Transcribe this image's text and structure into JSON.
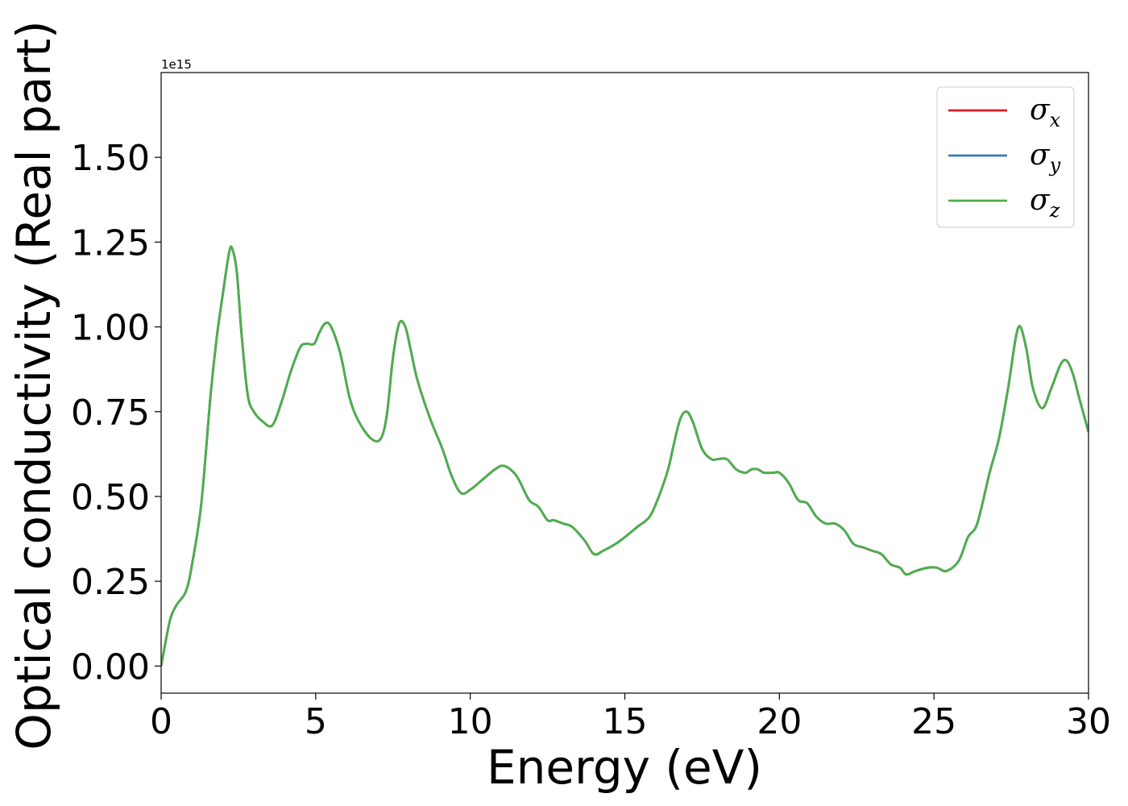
{
  "chart_data": {
    "type": "line",
    "title": "",
    "xlabel": "Energy (eV)",
    "ylabel": "Optical conductivity (Real part)",
    "y_offset_label": "1e15",
    "xlim": [
      0,
      30
    ],
    "ylim": [
      -0.08,
      1.75
    ],
    "x_ticks": [
      0,
      5,
      10,
      15,
      20,
      25,
      30
    ],
    "x_tick_labels": [
      "0",
      "5",
      "10",
      "15",
      "20",
      "25",
      "30"
    ],
    "y_ticks": [
      0.0,
      0.25,
      0.5,
      0.75,
      1.0,
      1.25,
      1.5
    ],
    "y_tick_labels": [
      "0.00",
      "0.25",
      "0.50",
      "0.75",
      "1.00",
      "1.25",
      "1.50"
    ],
    "grid": false,
    "legend_position": "top-right",
    "x": [
      0,
      0.1,
      0.3,
      0.5,
      0.8,
      1.0,
      1.3,
      1.6,
      1.8,
      2.0,
      2.2,
      2.3,
      2.45,
      2.6,
      2.8,
      3.0,
      3.3,
      3.6,
      3.9,
      4.2,
      4.5,
      4.7,
      4.95,
      5.1,
      5.3,
      5.5,
      5.8,
      6.1,
      6.4,
      6.8,
      7.1,
      7.3,
      7.5,
      7.7,
      7.9,
      8.1,
      8.3,
      8.7,
      9.1,
      9.4,
      9.7,
      10.0,
      10.4,
      10.8,
      11.1,
      11.5,
      11.9,
      12.2,
      12.5,
      12.7,
      13.0,
      13.3,
      13.7,
      14.0,
      14.3,
      14.7,
      15.0,
      15.4,
      15.8,
      16.1,
      16.4,
      16.6,
      16.8,
      17.0,
      17.2,
      17.5,
      17.8,
      18.0,
      18.3,
      18.6,
      18.9,
      19.1,
      19.3,
      19.5,
      19.8,
      20.0,
      20.3,
      20.6,
      20.9,
      21.2,
      21.5,
      21.8,
      22.1,
      22.4,
      22.7,
      23.0,
      23.3,
      23.6,
      23.9,
      24.1,
      24.4,
      24.8,
      25.1,
      25.4,
      25.8,
      26.1,
      26.4,
      26.8,
      27.1,
      27.4,
      27.65,
      27.8,
      28.0,
      28.2,
      28.5,
      28.8,
      29.1,
      29.3,
      29.5,
      29.7,
      30.0
    ],
    "series": [
      {
        "name": "σ_x",
        "label": "σ",
        "subscript": "x",
        "color": "#e41a1c",
        "values": [
          0.0,
          0.05,
          0.14,
          0.18,
          0.22,
          0.3,
          0.48,
          0.8,
          0.97,
          1.1,
          1.22,
          1.23,
          1.16,
          0.98,
          0.8,
          0.75,
          0.72,
          0.71,
          0.78,
          0.87,
          0.94,
          0.95,
          0.95,
          0.98,
          1.01,
          1.0,
          0.92,
          0.79,
          0.72,
          0.67,
          0.67,
          0.74,
          0.91,
          1.01,
          1.0,
          0.92,
          0.84,
          0.73,
          0.64,
          0.56,
          0.51,
          0.52,
          0.55,
          0.58,
          0.59,
          0.56,
          0.49,
          0.47,
          0.43,
          0.43,
          0.42,
          0.41,
          0.37,
          0.33,
          0.34,
          0.36,
          0.38,
          0.41,
          0.44,
          0.5,
          0.58,
          0.66,
          0.73,
          0.75,
          0.72,
          0.64,
          0.61,
          0.61,
          0.61,
          0.58,
          0.57,
          0.58,
          0.58,
          0.57,
          0.57,
          0.57,
          0.54,
          0.49,
          0.48,
          0.44,
          0.42,
          0.42,
          0.4,
          0.36,
          0.35,
          0.34,
          0.33,
          0.3,
          0.29,
          0.27,
          0.28,
          0.29,
          0.29,
          0.28,
          0.31,
          0.38,
          0.42,
          0.57,
          0.67,
          0.82,
          0.97,
          1.0,
          0.93,
          0.82,
          0.76,
          0.82,
          0.89,
          0.9,
          0.86,
          0.79,
          0.69
        ]
      },
      {
        "name": "σ_y",
        "label": "σ",
        "subscript": "y",
        "color": "#377eb8",
        "values": [
          0.0,
          0.05,
          0.14,
          0.18,
          0.22,
          0.3,
          0.48,
          0.8,
          0.97,
          1.1,
          1.22,
          1.23,
          1.16,
          0.98,
          0.8,
          0.75,
          0.72,
          0.71,
          0.78,
          0.87,
          0.94,
          0.95,
          0.95,
          0.98,
          1.01,
          1.0,
          0.92,
          0.79,
          0.72,
          0.67,
          0.67,
          0.74,
          0.91,
          1.01,
          1.0,
          0.92,
          0.84,
          0.73,
          0.64,
          0.56,
          0.51,
          0.52,
          0.55,
          0.58,
          0.59,
          0.56,
          0.49,
          0.47,
          0.43,
          0.43,
          0.42,
          0.41,
          0.37,
          0.33,
          0.34,
          0.36,
          0.38,
          0.41,
          0.44,
          0.5,
          0.58,
          0.66,
          0.73,
          0.75,
          0.72,
          0.64,
          0.61,
          0.61,
          0.61,
          0.58,
          0.57,
          0.58,
          0.58,
          0.57,
          0.57,
          0.57,
          0.54,
          0.49,
          0.48,
          0.44,
          0.42,
          0.42,
          0.4,
          0.36,
          0.35,
          0.34,
          0.33,
          0.3,
          0.29,
          0.27,
          0.28,
          0.29,
          0.29,
          0.28,
          0.31,
          0.38,
          0.42,
          0.57,
          0.67,
          0.82,
          0.97,
          1.0,
          0.93,
          0.82,
          0.76,
          0.82,
          0.89,
          0.9,
          0.86,
          0.79,
          0.69
        ]
      },
      {
        "name": "σ_z",
        "label": "σ",
        "subscript": "z",
        "color": "#4daf4a",
        "values": [
          0.0,
          0.05,
          0.14,
          0.18,
          0.22,
          0.3,
          0.48,
          0.8,
          0.97,
          1.1,
          1.22,
          1.23,
          1.16,
          0.98,
          0.8,
          0.75,
          0.72,
          0.71,
          0.78,
          0.87,
          0.94,
          0.95,
          0.95,
          0.98,
          1.01,
          1.0,
          0.92,
          0.79,
          0.72,
          0.67,
          0.67,
          0.74,
          0.91,
          1.01,
          1.0,
          0.92,
          0.84,
          0.73,
          0.64,
          0.56,
          0.51,
          0.52,
          0.55,
          0.58,
          0.59,
          0.56,
          0.49,
          0.47,
          0.43,
          0.43,
          0.42,
          0.41,
          0.37,
          0.33,
          0.34,
          0.36,
          0.38,
          0.41,
          0.44,
          0.5,
          0.58,
          0.66,
          0.73,
          0.75,
          0.72,
          0.64,
          0.61,
          0.61,
          0.61,
          0.58,
          0.57,
          0.58,
          0.58,
          0.57,
          0.57,
          0.57,
          0.54,
          0.49,
          0.48,
          0.44,
          0.42,
          0.42,
          0.4,
          0.36,
          0.35,
          0.34,
          0.33,
          0.3,
          0.29,
          0.27,
          0.28,
          0.29,
          0.29,
          0.28,
          0.31,
          0.38,
          0.42,
          0.57,
          0.67,
          0.82,
          0.97,
          1.0,
          0.93,
          0.82,
          0.76,
          0.82,
          0.89,
          0.9,
          0.86,
          0.79,
          0.69
        ]
      }
    ]
  }
}
